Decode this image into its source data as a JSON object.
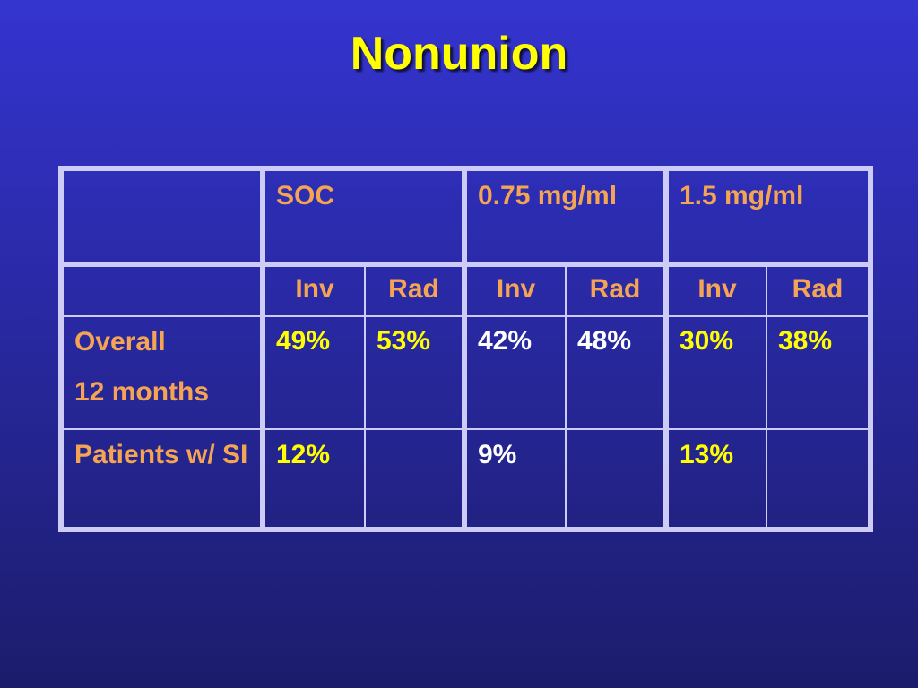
{
  "title": "Nonunion",
  "table": {
    "groups": [
      "SOC",
      "0.75 mg/ml",
      "1.5 mg/ml"
    ],
    "subheaders": [
      "Inv",
      "Rad",
      "Inv",
      "Rad",
      "Inv",
      "Rad"
    ],
    "rows": [
      {
        "label": [
          "Overall",
          "12 months"
        ],
        "values": [
          "49%",
          "53%",
          "42%",
          "48%",
          "30%",
          "38%"
        ]
      },
      {
        "label": [
          "Patients w/ SI"
        ],
        "values": [
          "12%",
          null,
          "9%",
          null,
          "13%",
          null
        ]
      }
    ]
  }
}
